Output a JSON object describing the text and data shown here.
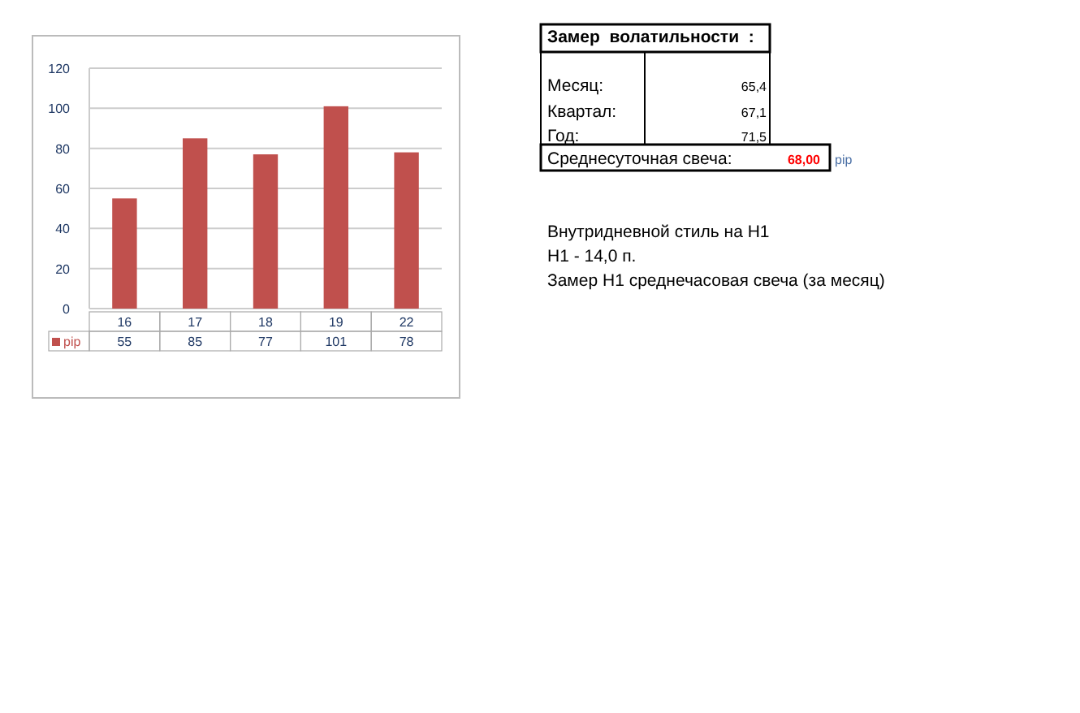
{
  "chart_data": {
    "type": "bar",
    "categories": [
      "16",
      "17",
      "18",
      "19",
      "22"
    ],
    "series": [
      {
        "name": "pip",
        "color": "#c0504d",
        "values": [
          55,
          85,
          77,
          101,
          78
        ]
      }
    ],
    "ylim": [
      0,
      120
    ],
    "yticks": [
      0,
      20,
      40,
      60,
      80,
      100,
      120
    ],
    "grid": "y",
    "legend": "bottom",
    "data_labels": true,
    "annotations": [
      "Замер  волатильности  :",
      "Месяц:",
      "65,4",
      "Квартал:",
      "67,1",
      "Год:",
      "71,5",
      "Среднесуточная свеча:",
      "68,00",
      "pip",
      "Внутридневной стиль на H1",
      "H1 - 14,0 п.",
      "Замер H1 среднечасовая свеча (за месяц)"
    ]
  }
}
